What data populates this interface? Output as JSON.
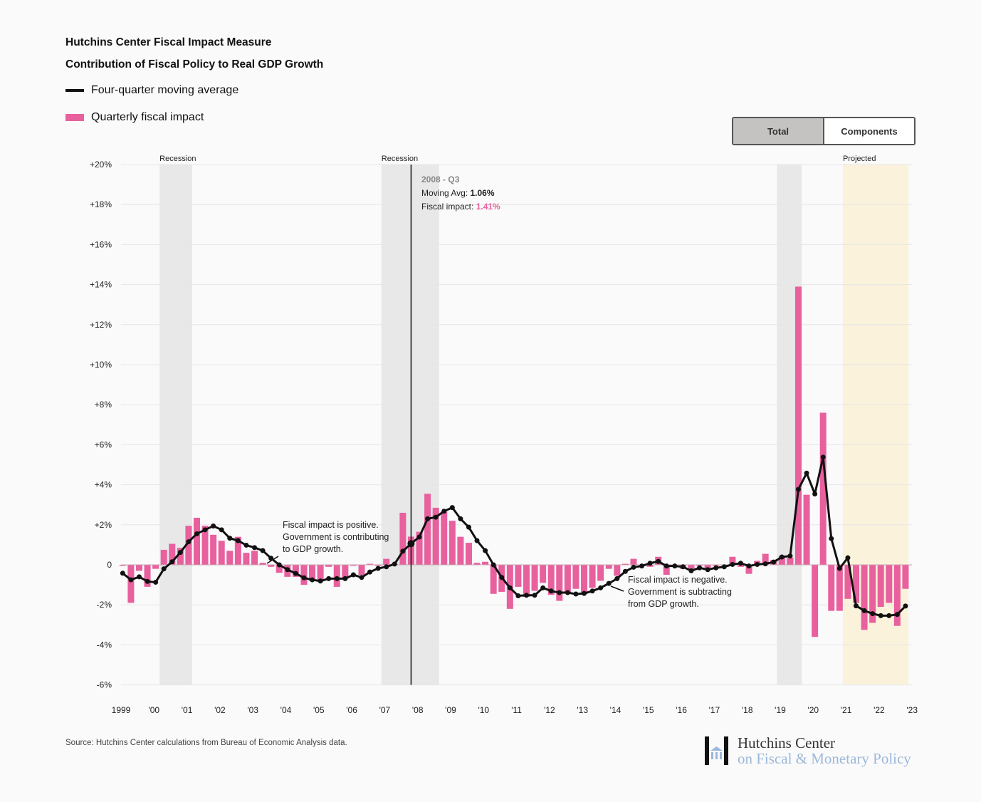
{
  "header": {
    "title": "Hutchins Center Fiscal Impact Measure",
    "subtitle": "Contribution of Fiscal Policy to Real GDP Growth"
  },
  "legend": {
    "moving_avg": "Four-quarter moving average",
    "quarterly": "Quarterly fiscal impact"
  },
  "toggle": {
    "total": "Total",
    "components": "Components",
    "active": "Total"
  },
  "colors": {
    "bar": "#e8609e",
    "line": "#111111",
    "recession": "#e8e8e8",
    "projected": "#fbf2dc",
    "tooltip_impact": "#e8609e"
  },
  "tooltip": {
    "period": "2008 - Q3",
    "moving_avg_label": "Moving Avg: ",
    "moving_avg_value": "1.06%",
    "impact_label": "Fiscal impact: ",
    "impact_value": "1.41%"
  },
  "annotations": {
    "positive": [
      "Fiscal impact is positive.",
      "Government is contributing",
      "to GDP growth."
    ],
    "negative": [
      "Fiscal impact is negative.",
      "Government is subtracting",
      "from GDP growth."
    ]
  },
  "footer": {
    "source": "Source: Hutchins Center calculations from Bureau of Economic Analysis data.",
    "logo_line1": "Hutchins Center",
    "logo_line2": "on Fiscal & Monetary Policy"
  },
  "chart_data": {
    "type": "bar+line",
    "title": "Contribution of Fiscal Policy to Real GDP Growth",
    "xlabel": "",
    "ylabel": "",
    "ylim": [
      -6,
      20
    ],
    "xlim": [
      1999,
      2023
    ],
    "y_ticks": [
      -6,
      -4,
      -2,
      0,
      2,
      4,
      6,
      8,
      10,
      12,
      14,
      16,
      18,
      20
    ],
    "y_tick_labels": [
      "-6%",
      "-4%",
      "-2%",
      "0",
      "+2%",
      "+4%",
      "+6%",
      "+8%",
      "+10%",
      "+12%",
      "+14%",
      "+16%",
      "+18%",
      "+20%"
    ],
    "x_ticks": [
      1999,
      2000,
      2001,
      2002,
      2003,
      2004,
      2005,
      2006,
      2007,
      2008,
      2009,
      2010,
      2011,
      2012,
      2013,
      2014,
      2015,
      2016,
      2017,
      2018,
      2019,
      2020,
      2021,
      2022,
      2023
    ],
    "x_tick_labels": [
      "1999",
      "'00",
      "'01",
      "'02",
      "'03",
      "'04",
      "'05",
      "'06",
      "'07",
      "'08",
      "'09",
      "'10",
      "'11",
      "'12",
      "'13",
      "'14",
      "'15",
      "'16",
      "'17",
      "'18",
      "'19",
      "'20",
      "'21",
      "'22",
      "'23"
    ],
    "grid": true,
    "legend_position": "top-left",
    "first_bar_x": 1999.05,
    "quarter_step": 0.25,
    "highlighted_index": 35,
    "shaded_regions": [
      {
        "label": "Recession",
        "start": 2000.17,
        "end": 2001.16,
        "kind": "recession"
      },
      {
        "label": "Recession",
        "start": 2006.9,
        "end": 2008.65,
        "kind": "recession"
      },
      {
        "label": "",
        "start": 2018.9,
        "end": 2019.65,
        "kind": "recession"
      },
      {
        "label": "Projected",
        "start": 2020.9,
        "end": 2022.89,
        "kind": "projected"
      }
    ],
    "series": [
      {
        "name": "Quarterly fiscal impact",
        "type": "bar",
        "values": [
          -0.05,
          -1.9,
          -0.3,
          -1.1,
          -0.2,
          0.75,
          1.05,
          0.85,
          1.95,
          2.35,
          1.95,
          1.5,
          1.2,
          0.7,
          1.4,
          0.6,
          0.7,
          0.1,
          -0.1,
          -0.4,
          -0.6,
          -0.6,
          -1.0,
          -0.8,
          -0.8,
          -0.1,
          -1.1,
          -0.7,
          -0.05,
          -0.5,
          0.05,
          -0.05,
          0.3,
          0.05,
          2.6,
          1.41,
          1.65,
          3.55,
          2.85,
          2.65,
          2.2,
          1.4,
          1.1,
          0.1,
          0.15,
          -1.45,
          -1.35,
          -2.2,
          -1.1,
          -1.6,
          -1.3,
          -0.9,
          -1.5,
          -1.8,
          -1.4,
          -1.2,
          -1.45,
          -1.15,
          -0.8,
          -0.2,
          -0.55,
          0.05,
          0.3,
          0.0,
          -0.1,
          0.4,
          -0.5,
          0.0,
          -0.2,
          -0.2,
          -0.05,
          -0.15,
          -0.05,
          0.0,
          0.4,
          -0.1,
          -0.45,
          0.2,
          0.55,
          0.25,
          0.45,
          0.35,
          13.9,
          3.5,
          -3.6,
          7.6,
          -2.3,
          -2.3,
          -1.7,
          -1.9,
          -3.25,
          -2.9,
          -2.1,
          -1.9,
          -3.05,
          -1.2
        ]
      },
      {
        "name": "Four-quarter moving average",
        "type": "line",
        "values": [
          -0.42,
          -0.75,
          -0.6,
          -0.83,
          -0.87,
          -0.2,
          0.15,
          0.62,
          1.15,
          1.55,
          1.75,
          1.94,
          1.75,
          1.33,
          1.21,
          0.98,
          0.86,
          0.71,
          0.33,
          0.0,
          -0.24,
          -0.43,
          -0.65,
          -0.75,
          -0.81,
          -0.69,
          -0.69,
          -0.69,
          -0.5,
          -0.63,
          -0.36,
          -0.18,
          -0.1,
          0.04,
          0.68,
          1.06,
          1.39,
          2.3,
          2.38,
          2.68,
          2.86,
          2.3,
          1.88,
          1.21,
          0.71,
          0.0,
          -0.63,
          -1.15,
          -1.55,
          -1.52,
          -1.52,
          -1.15,
          -1.31,
          -1.39,
          -1.39,
          -1.46,
          -1.43,
          -1.31,
          -1.15,
          -0.93,
          -0.69,
          -0.33,
          -0.12,
          -0.06,
          0.08,
          0.17,
          -0.06,
          -0.06,
          -0.1,
          -0.3,
          -0.15,
          -0.24,
          -0.15,
          -0.1,
          0.02,
          0.08,
          -0.06,
          0.02,
          0.05,
          0.14,
          0.39,
          0.44,
          3.77,
          4.58,
          3.54,
          5.38,
          1.31,
          -0.18,
          0.35,
          -2.05,
          -2.29,
          -2.44,
          -2.54,
          -2.54,
          -2.48,
          -2.06
        ]
      }
    ]
  }
}
